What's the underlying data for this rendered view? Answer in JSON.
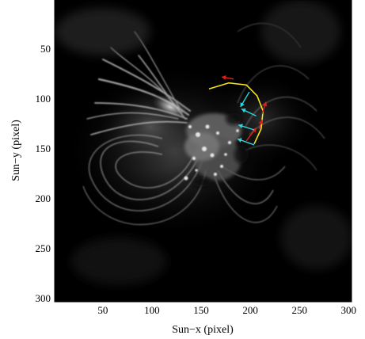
{
  "figure": {
    "type": "solar-image",
    "xlabel": "Sun−x (pixel)",
    "ylabel": "Sun−y (pixel)",
    "x_ticks": [
      {
        "value": 50,
        "label": "50"
      },
      {
        "value": 100,
        "label": "100"
      },
      {
        "value": 150,
        "label": "150"
      },
      {
        "value": 200,
        "label": "200"
      },
      {
        "value": 250,
        "label": "250"
      },
      {
        "value": 300,
        "label": "300"
      }
    ],
    "y_ticks": [
      {
        "value": 50,
        "label": "50"
      },
      {
        "value": 100,
        "label": "100"
      },
      {
        "value": 150,
        "label": "150"
      },
      {
        "value": 200,
        "label": "200"
      },
      {
        "value": 250,
        "label": "250"
      },
      {
        "value": 300,
        "label": "300"
      }
    ],
    "xlim": [
      1,
      303
    ],
    "ylim": [
      1,
      303
    ],
    "y_inverted": true,
    "colors": {
      "background": "#000000",
      "curve": "#f5e21b",
      "outward_arrows": "#e0201e",
      "inward_arrows": "#2ad8df"
    },
    "annotations": {
      "curve_points": [
        [
          158,
          90
        ],
        [
          178,
          84
        ],
        [
          196,
          86
        ],
        [
          207,
          97
        ],
        [
          213,
          112
        ],
        [
          211,
          130
        ],
        [
          204,
          145
        ]
      ],
      "red_arrows": [
        {
          "from": [
            183,
            80
          ],
          "to": [
            171,
            78
          ]
        },
        {
          "from": [
            212,
            115
          ],
          "to": [
            216,
            103
          ]
        },
        {
          "from": [
            209,
            130
          ],
          "to": [
            212,
            121
          ]
        },
        {
          "from": [
            196,
            142
          ],
          "to": [
            206,
            129
          ]
        }
      ],
      "cyan_arrows": [
        {
          "from": [
            199,
            93
          ],
          "to": [
            190,
            108
          ]
        },
        {
          "from": [
            206,
            117
          ],
          "to": [
            191,
            110
          ]
        },
        {
          "from": [
            204,
            131
          ],
          "to": [
            188,
            126
          ]
        },
        {
          "from": [
            204,
            146
          ],
          "to": [
            187,
            140
          ]
        }
      ]
    }
  }
}
